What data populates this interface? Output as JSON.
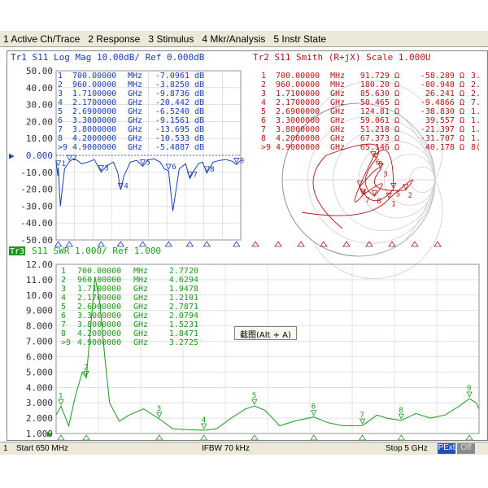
{
  "menu": [
    "1 Active Ch/Trace",
    "2 Response",
    "3 Stimulus",
    "4 Mkr/Analysis",
    "5 Instr State"
  ],
  "tr1": {
    "title": "Tr1  S11  Log Mag 10.00dB/ Ref 0.000dB",
    "color": "#1a3fb4",
    "ylabels": [
      "50.00",
      "40.00",
      "30.00",
      "20.00",
      "10.00",
      "0.000",
      "-10.00",
      "-20.00",
      "-30.00",
      "-40.00",
      "-50.00"
    ],
    "markers": [
      {
        "n": "1",
        "f": "700.00000",
        "u": "MHz",
        "v": "-7.0961",
        "vu": "dB"
      },
      {
        "n": "2",
        "f": "960.00000",
        "u": "MHz",
        "v": "-3.8250",
        "vu": "dB"
      },
      {
        "n": "3",
        "f": "1.7100000",
        "u": "GHz",
        "v": "-9.8736",
        "vu": "dB"
      },
      {
        "n": "4",
        "f": "2.1700000",
        "u": "GHz",
        "v": "-20.442",
        "vu": "dB"
      },
      {
        "n": "5",
        "f": "2.6900000",
        "u": "GHz",
        "v": "-6.5240",
        "vu": "dB"
      },
      {
        "n": "6",
        "f": "3.3000000",
        "u": "GHz",
        "v": "-9.1561",
        "vu": "dB"
      },
      {
        "n": "7",
        "f": "3.8000000",
        "u": "GHz",
        "v": "-13.695",
        "vu": "dB"
      },
      {
        "n": "8",
        "f": "4.2000000",
        "u": "GHz",
        "v": "-10.533",
        "vu": "dB"
      },
      {
        "n": ">9",
        "f": "4.9000000",
        "u": "GHz",
        "v": "-5.4887",
        "vu": "dB"
      }
    ]
  },
  "tr2": {
    "title": "Tr2  S11  Smith  (R+jX)  Scale 1.000U",
    "color": "#b01818",
    "markers": [
      {
        "n": "1",
        "f": "700.00000",
        "u": "MHz",
        "r": "91.729 Ω",
        "x": "-58.289 Ω",
        "e": "3."
      },
      {
        "n": "2",
        "f": "960.00000",
        "u": "MHz",
        "r": "180.20 Ω",
        "x": "-80.948 Ω",
        "e": "2."
      },
      {
        "n": "3",
        "f": "1.7100000",
        "u": "GHz",
        "r": "85.630 Ω",
        "x": "26.241 Ω",
        "e": "2."
      },
      {
        "n": "4",
        "f": "2.1700000",
        "u": "GHz",
        "r": "50.465 Ω",
        "x": "-9.4866 Ω",
        "e": "7."
      },
      {
        "n": "5",
        "f": "2.6900000",
        "u": "GHz",
        "r": "124.81 Ω",
        "x": "-38.830 Ω",
        "e": "1."
      },
      {
        "n": "6",
        "f": "3.3000000",
        "u": "GHz",
        "r": "59.061 Ω",
        "x": "39.557 Ω",
        "e": "1."
      },
      {
        "n": "7",
        "f": "3.8000000",
        "u": "GHz",
        "r": "51.218 Ω",
        "x": "-21.397 Ω",
        "e": "1."
      },
      {
        "n": "8",
        "f": "4.2000000",
        "u": "GHz",
        "r": "67.373 Ω",
        "x": "-31.707 Ω",
        "e": "1."
      },
      {
        "n": ">9",
        "f": "4.9000000",
        "u": "GHz",
        "r": "65.146 Ω",
        "x": "40.178 Ω",
        "e": "8("
      }
    ]
  },
  "tr3": {
    "label": "Tr3",
    "title": "S11  SWR 1.000/ Ref 1.000",
    "color": "#1a9a1a",
    "ylabels": [
      "12.00",
      "11.00",
      "10.00",
      "9.000",
      "8.000",
      "7.000",
      "6.000",
      "5.000",
      "4.000",
      "3.000",
      "2.000",
      "1.000"
    ],
    "markers": [
      {
        "n": "1",
        "f": "700.00000",
        "u": "MHz",
        "v": "2.7720"
      },
      {
        "n": "2",
        "f": "960.00000",
        "u": "MHz",
        "v": "4.6294"
      },
      {
        "n": "3",
        "f": "1.7100000",
        "u": "GHz",
        "v": "1.9478"
      },
      {
        "n": "4",
        "f": "2.1700000",
        "u": "GHz",
        "v": "1.2101"
      },
      {
        "n": "5",
        "f": "2.6900000",
        "u": "GHz",
        "v": "2.7871"
      },
      {
        "n": "6",
        "f": "3.3000000",
        "u": "GHz",
        "v": "2.0794"
      },
      {
        "n": "7",
        "f": "3.8000000",
        "u": "GHz",
        "v": "1.5231"
      },
      {
        "n": "8",
        "f": "4.2000000",
        "u": "GHz",
        "v": "1.8471"
      },
      {
        "n": ">9",
        "f": "4.9000000",
        "u": "GHz",
        "v": "3.2725"
      }
    ]
  },
  "tooltip": "截图(Alt + A)",
  "status": {
    "channel": "1",
    "start": "Start 650 MHz",
    "ifbw": "IFBW 70 kHz",
    "stop": "Stop 5 GHz",
    "pext": "PExt",
    "off": "Off"
  },
  "chart_data": [
    {
      "type": "line",
      "title": "Tr1  S11  Log Mag 10.00dB/ Ref 0.000dB",
      "ylim": [
        -50,
        50
      ],
      "xlim_ghz": [
        0.65,
        5.0
      ],
      "series": [
        {
          "name": "S11 Log Mag",
          "x": [
            0.65,
            0.69,
            0.7,
            0.75,
            0.85,
            0.96,
            1.05,
            1.15,
            1.25,
            1.4,
            1.55,
            1.71,
            1.85,
            2.0,
            2.1,
            2.17,
            2.25,
            2.4,
            2.55,
            2.69,
            2.8,
            2.95,
            3.1,
            3.2,
            3.3,
            3.4,
            3.55,
            3.7,
            3.8,
            3.9,
            4.0,
            4.1,
            4.2,
            4.35,
            4.5,
            4.65,
            4.8,
            4.9,
            5.0
          ],
          "y": [
            -4,
            -12,
            -7.1,
            -30,
            -8,
            -3.8,
            -2,
            -3,
            -5,
            -4,
            -2.5,
            -9.9,
            -6,
            -4,
            -10,
            -20.4,
            -12,
            -4,
            -3,
            -6.5,
            -3,
            -2,
            -4,
            -8,
            -9.2,
            -33,
            -8,
            -5,
            -13.7,
            -9,
            -5,
            -4,
            -10.5,
            -4,
            -3,
            -2.5,
            -3.5,
            -5.5,
            -3
          ]
        }
      ]
    },
    {
      "type": "line",
      "title": "S11  SWR 1.000/ Ref 1.000",
      "ylim": [
        1,
        12
      ],
      "xlim_ghz": [
        0.65,
        5.0
      ],
      "series": [
        {
          "name": "S11 SWR",
          "x": [
            0.65,
            0.7,
            0.78,
            0.85,
            0.92,
            0.96,
            1.05,
            1.1,
            1.15,
            1.2,
            1.3,
            1.4,
            1.55,
            1.71,
            1.85,
            2.0,
            2.17,
            2.3,
            2.45,
            2.6,
            2.69,
            2.8,
            2.95,
            3.1,
            3.3,
            3.45,
            3.6,
            3.8,
            3.95,
            4.05,
            4.2,
            4.35,
            4.5,
            4.65,
            4.8,
            4.9,
            4.97,
            5.0
          ],
          "y": [
            2.2,
            2.77,
            1.5,
            3.5,
            5.0,
            4.63,
            11.2,
            9.5,
            6.0,
            3.0,
            1.8,
            2.2,
            2.6,
            1.95,
            1.3,
            1.25,
            1.21,
            1.3,
            2.0,
            2.6,
            2.79,
            2.5,
            1.5,
            1.8,
            2.08,
            1.7,
            1.5,
            1.52,
            2.2,
            2.0,
            1.85,
            2.3,
            2.0,
            2.2,
            2.8,
            3.27,
            3.0,
            2.6
          ]
        }
      ]
    }
  ]
}
